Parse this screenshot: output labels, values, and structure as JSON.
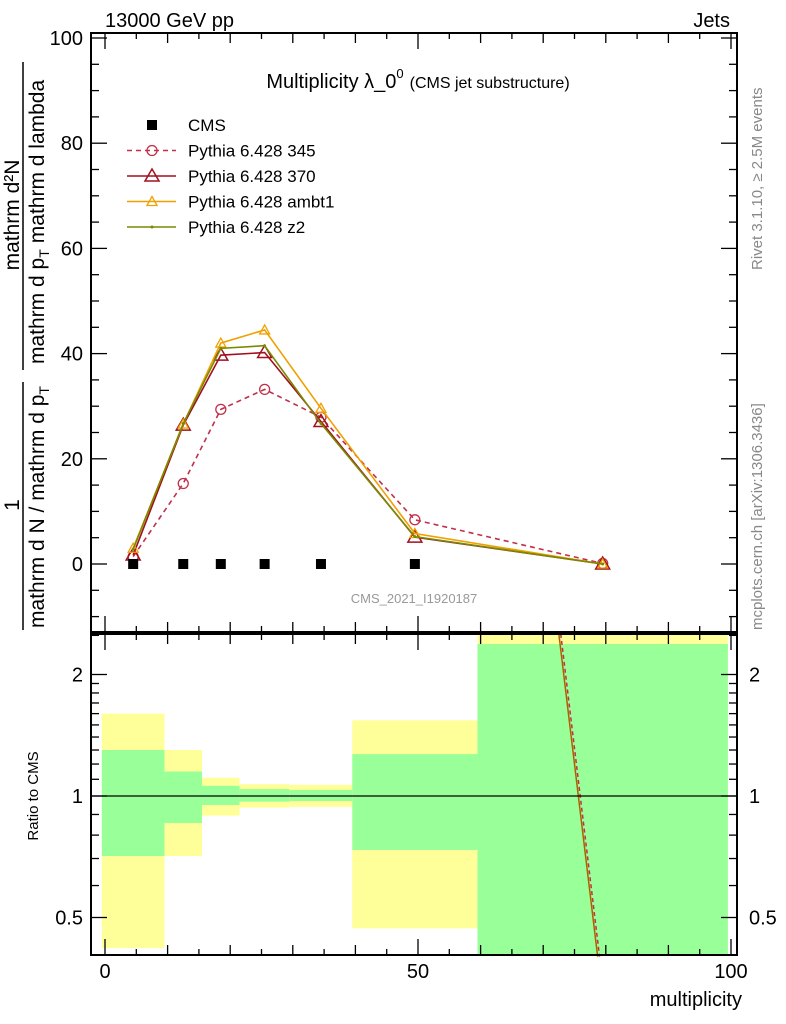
{
  "header": {
    "left": "13000 GeV pp",
    "right": "Jets"
  },
  "side_labels": {
    "rivet": "Rivet 3.1.10, ≥ 2.5M events",
    "mcplots": "mcplots.cern.ch [arXiv:1306.3436]"
  },
  "chart_data": [
    {
      "type": "line",
      "title_main": "Multiplicity λ_0",
      "title_sup": "0",
      "title_suffix": "(CMS jet substructure)",
      "analysis_label": "CMS_2021_I1920187",
      "ylabel_parts": {
        "one": "1",
        "left_den": "mathrm d N / mathrm d p",
        "num": "mathrm d²N",
        "right_den": "mathrm d p",
        "sub": "T",
        "right_den_rest": "mathrm d lambda"
      },
      "xlim": [
        -2.2,
        100.8
      ],
      "ylim": [
        -13,
        101
      ],
      "yticks": [
        0,
        20,
        40,
        60,
        80,
        100
      ],
      "legend_placement": "top-left",
      "x": [
        4.5,
        12.5,
        18.5,
        25.5,
        34.5,
        49.5,
        79.5
      ],
      "series": [
        {
          "name": "CMS",
          "marker": "square",
          "color": "#000000",
          "dash": false,
          "values": [
            0,
            0,
            0,
            0,
            0,
            0,
            0
          ]
        },
        {
          "name": "Pythia 6.428 345",
          "marker": "circle",
          "color": "#c0304a",
          "dash": true,
          "values": [
            1.4,
            15.3,
            29.4,
            33.2,
            27.9,
            8.4,
            0.1
          ]
        },
        {
          "name": "Pythia 6.428 370",
          "marker": "triangle",
          "color": "#a0101e",
          "dash": false,
          "values": [
            1.7,
            26.4,
            39.7,
            40.2,
            27.1,
            5.1,
            0
          ]
        },
        {
          "name": "Pythia 6.428 ambt1",
          "marker": "triangle-small",
          "color": "#f0a000",
          "dash": false,
          "values": [
            3.0,
            26.6,
            42.0,
            44.5,
            29.6,
            5.8,
            0
          ]
        },
        {
          "name": "Pythia 6.428 z2",
          "marker": "dot",
          "color": "#7a8a00",
          "dash": false,
          "values": [
            2.8,
            26.7,
            41.0,
            41.5,
            26.7,
            5.2,
            0
          ]
        }
      ]
    },
    {
      "type": "area",
      "ylabel": "Ratio to CMS",
      "xlabel": "multiplicity",
      "xticks": [
        0,
        50,
        100
      ],
      "yticks": [
        0.5,
        1,
        2
      ],
      "ylim": [
        0.4,
        2.52
      ],
      "yscale": "log",
      "bins": [
        [
          -0.5,
          9.5
        ],
        [
          9.5,
          15.5
        ],
        [
          15.5,
          21.5
        ],
        [
          21.5,
          29.5
        ],
        [
          29.5,
          39.5
        ],
        [
          39.5,
          59.5
        ],
        [
          59.5,
          99.5
        ]
      ],
      "band_total": [
        [
          0.42,
          1.6
        ],
        [
          0.71,
          1.3
        ],
        [
          0.894,
          1.11
        ],
        [
          0.936,
          1.07
        ],
        [
          0.94,
          1.066
        ],
        [
          0.47,
          1.54
        ],
        [
          0.3,
          3.0
        ]
      ],
      "band_stat": [
        [
          0.71,
          1.3
        ],
        [
          0.857,
          1.15
        ],
        [
          0.95,
          1.06
        ],
        [
          0.968,
          1.04
        ],
        [
          0.972,
          1.035
        ],
        [
          0.735,
          1.27
        ],
        [
          0.3,
          2.38
        ]
      ],
      "colors": {
        "total": "#ffff99",
        "stat": "#99ff99"
      },
      "ratio_lines": [
        {
          "name": "Pythia 6.428 345",
          "color": "#c0304a",
          "dash": true,
          "points": [
            [
              72.8,
              2.52
            ],
            [
              79.0,
              0.4
            ]
          ]
        },
        {
          "name": "Pythia ratio",
          "color": "#b06000",
          "dash": false,
          "points": [
            [
              72.5,
              2.52
            ],
            [
              78.7,
              0.4
            ]
          ]
        }
      ]
    }
  ]
}
